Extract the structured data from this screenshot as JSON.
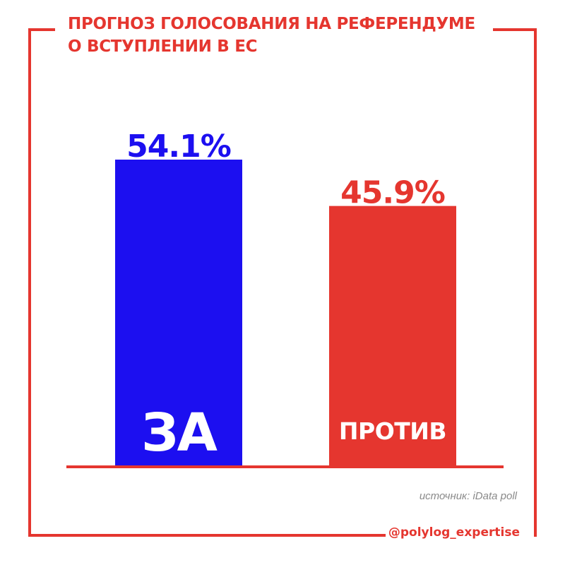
{
  "header": {
    "title_line1": "ПРОГНОЗ ГОЛОСОВАНИЯ НА РЕФЕРЕНДУМЕ",
    "title_line2": "О ВСТУПЛЕНИИ В ЕС"
  },
  "colors": {
    "accent": "#e5362f",
    "za": "#1c0ff0",
    "protiv": "#e5362f",
    "source_text": "#8a8a8a"
  },
  "chart_data": {
    "type": "bar",
    "title": "ПРОГНОЗ ГОЛОСОВАНИЯ НА РЕФЕРЕНДУМЕ О ВСТУПЛЕНИИ В ЕС",
    "categories": [
      "ЗА",
      "ПРОТИВ"
    ],
    "values": [
      54.1,
      45.9
    ],
    "value_labels": [
      "54.1%",
      "45.9%"
    ],
    "bar_colors": [
      "#1c0ff0",
      "#e5362f"
    ],
    "xlabel": "",
    "ylabel": "",
    "ylim": [
      0,
      54.1
    ],
    "grid": false,
    "legend": "none"
  },
  "footer": {
    "source": "источник: iData poll",
    "handle": "@polylog_expertise"
  }
}
